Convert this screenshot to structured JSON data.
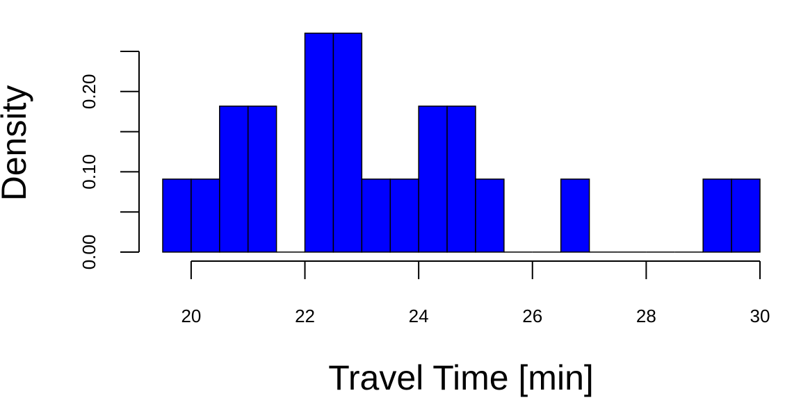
{
  "chart_data": {
    "type": "histogram",
    "x_label": "Travel Time [min]",
    "y_label": "Density",
    "bins": [
      19.5,
      20,
      20.5,
      21,
      21.5,
      22,
      22.5,
      23,
      23.5,
      24,
      24.5,
      25,
      25.5,
      26,
      26.5,
      27,
      27.5,
      28,
      28.5,
      29,
      29.5,
      30
    ],
    "values": [
      0.0909,
      0.0909,
      0.1818,
      0.1818,
      0,
      0.2727,
      0.2727,
      0.0909,
      0.0909,
      0.1818,
      0.1818,
      0.0909,
      0,
      0,
      0.0909,
      0,
      0,
      0,
      0,
      0.0909,
      0.0909
    ],
    "color": "#0000ff",
    "xlim": [
      19.5,
      30
    ],
    "xticks": [
      20,
      22,
      24,
      26,
      28,
      30
    ],
    "ylim": [
      0,
      0.25
    ],
    "yticks": [
      {
        "value": 0,
        "label": "0.00"
      },
      {
        "value": 0.05,
        "label": null
      },
      {
        "value": 0.1,
        "label": "0.10"
      },
      {
        "value": 0.15,
        "label": null
      },
      {
        "value": 0.2,
        "label": "0.20"
      },
      {
        "value": 0.25,
        "label": null
      }
    ]
  }
}
